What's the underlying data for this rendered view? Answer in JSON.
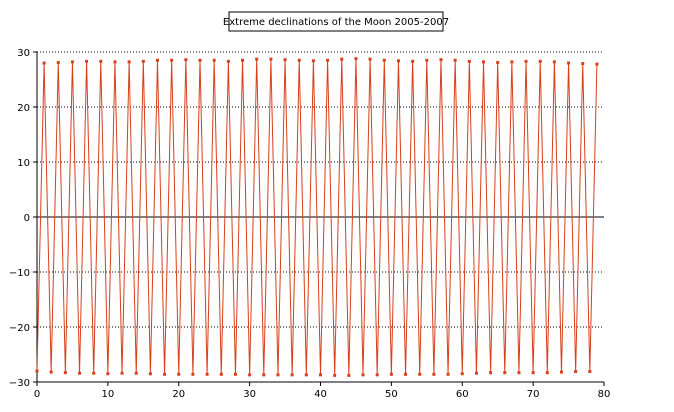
{
  "chart_data": {
    "type": "line",
    "title": "Extreme declinations of the Moon 2005-2007",
    "xlabel": "",
    "ylabel": "",
    "xlim": [
      0,
      80
    ],
    "ylim": [
      -30,
      30
    ],
    "x_ticks": [
      0,
      10,
      20,
      30,
      40,
      50,
      60,
      70,
      80
    ],
    "y_ticks": [
      -30,
      -20,
      -10,
      0,
      10,
      20,
      30
    ],
    "grid": "horizontal dotted",
    "legend": "none",
    "series": [
      {
        "color": "#d8401c",
        "marker": "square",
        "x": [
          0,
          1,
          2,
          3,
          4,
          5,
          6,
          7,
          8,
          9,
          10,
          11,
          12,
          13,
          14,
          15,
          16,
          17,
          18,
          19,
          20,
          21,
          22,
          23,
          24,
          25,
          26,
          27,
          28,
          29,
          30,
          31,
          32,
          33,
          34,
          35,
          36,
          37,
          38,
          39,
          40,
          41,
          42,
          43,
          44,
          45,
          46,
          47,
          48,
          49,
          50,
          51,
          52,
          53,
          54,
          55,
          56,
          57,
          58,
          59,
          60,
          61,
          62,
          63,
          64,
          65,
          66,
          67,
          68,
          69,
          70,
          71,
          72,
          73,
          74,
          75,
          76,
          77,
          78,
          79
        ],
        "y": [
          -28.0,
          28.0,
          -28.2,
          28.1,
          -28.3,
          28.2,
          -28.4,
          28.3,
          -28.4,
          28.3,
          -28.5,
          28.2,
          -28.4,
          28.2,
          -28.4,
          28.3,
          -28.5,
          28.5,
          -28.6,
          28.5,
          -28.6,
          28.6,
          -28.6,
          28.5,
          -28.6,
          28.5,
          -28.6,
          28.3,
          -28.6,
          28.5,
          -28.7,
          28.7,
          -28.7,
          28.7,
          -28.7,
          28.6,
          -28.7,
          28.5,
          -28.7,
          28.4,
          -28.7,
          28.5,
          -28.8,
          28.7,
          -28.8,
          28.8,
          -28.7,
          28.7,
          -28.7,
          28.5,
          -28.6,
          28.4,
          -28.6,
          28.3,
          -28.6,
          28.5,
          -28.6,
          28.6,
          -28.6,
          28.5,
          -28.5,
          28.3,
          -28.4,
          28.2,
          -28.3,
          28.1,
          -28.3,
          28.2,
          -28.3,
          28.3,
          -28.3,
          28.3,
          -28.3,
          28.2,
          -28.2,
          28.0,
          -28.1,
          27.9,
          -28.1,
          27.8
        ]
      }
    ]
  }
}
